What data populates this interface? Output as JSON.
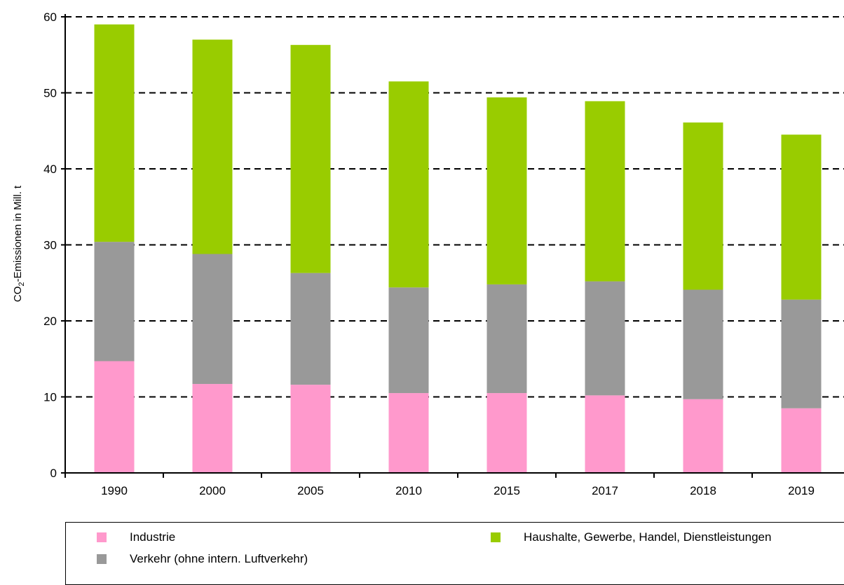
{
  "chart_data": {
    "type": "bar",
    "stacked": true,
    "categories": [
      "1990",
      "2000",
      "2005",
      "2010",
      "2015",
      "2017",
      "2018",
      "2019"
    ],
    "series": [
      {
        "name": "Industrie",
        "color": "#ff99cc",
        "values": [
          14.7,
          11.7,
          11.6,
          10.5,
          10.5,
          10.2,
          9.7,
          8.5
        ]
      },
      {
        "name": "Verkehr (ohne intern. Luftverkehr)",
        "color": "#999999",
        "values": [
          15.7,
          17.1,
          14.7,
          13.9,
          14.3,
          15.0,
          14.4,
          14.3
        ]
      },
      {
        "name": "Haushalte, Gewerbe, Handel, Dienstleistungen",
        "color": "#99cc00",
        "values": [
          28.6,
          28.2,
          30.0,
          27.1,
          24.6,
          23.7,
          22.0,
          21.7
        ]
      }
    ],
    "ylabel_main": "CO",
    "ylabel_sub": "2",
    "ylabel_rest": "-Emissionen  in Mill. t",
    "ylim": [
      0,
      60
    ],
    "yticks": [
      0,
      10,
      20,
      30,
      40,
      50,
      60
    ],
    "grid": "horizontal dashed",
    "legend_position": "bottom"
  }
}
